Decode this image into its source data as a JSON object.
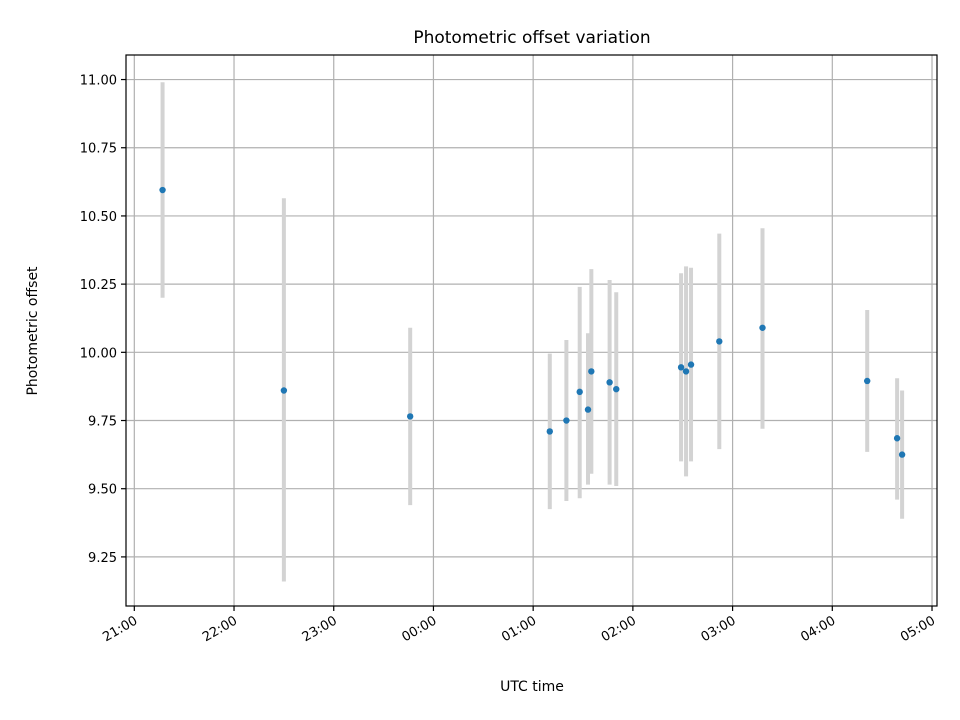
{
  "chart_data": {
    "type": "scatter",
    "title": "Photometric offset variation",
    "xlabel": "UTC time",
    "ylabel": "Photometric offset",
    "x_axis_type": "time",
    "xlim": [
      "20:55",
      "05:03"
    ],
    "ylim": [
      9.07,
      11.09
    ],
    "x_ticks": [
      "21:00",
      "22:00",
      "23:00",
      "00:00",
      "01:00",
      "02:00",
      "03:00",
      "04:00",
      "05:00"
    ],
    "y_ticks": [
      "9.25",
      "9.50",
      "9.75",
      "10.00",
      "10.25",
      "10.50",
      "10.75",
      "11.00"
    ],
    "grid": true,
    "marker_color": "#1f77b4",
    "errorbar_color": "#d3d3d3",
    "points": [
      {
        "time": "21:17",
        "y": 10.595,
        "ylow": 10.2,
        "yhigh": 10.99
      },
      {
        "time": "22:30",
        "y": 9.86,
        "ylow": 9.16,
        "yhigh": 10.565
      },
      {
        "time": "23:46",
        "y": 9.765,
        "ylow": 9.44,
        "yhigh": 10.09
      },
      {
        "time": "01:10",
        "y": 9.71,
        "ylow": 9.425,
        "yhigh": 9.995
      },
      {
        "time": "01:20",
        "y": 9.75,
        "ylow": 9.455,
        "yhigh": 10.045
      },
      {
        "time": "01:28",
        "y": 9.855,
        "ylow": 9.465,
        "yhigh": 10.24
      },
      {
        "time": "01:33",
        "y": 9.79,
        "ylow": 9.515,
        "yhigh": 10.07
      },
      {
        "time": "01:35",
        "y": 9.93,
        "ylow": 9.555,
        "yhigh": 10.305
      },
      {
        "time": "01:46",
        "y": 9.89,
        "ylow": 9.515,
        "yhigh": 10.265
      },
      {
        "time": "01:50",
        "y": 9.865,
        "ylow": 9.51,
        "yhigh": 10.22
      },
      {
        "time": "02:29",
        "y": 9.945,
        "ylow": 9.6,
        "yhigh": 10.29
      },
      {
        "time": "02:32",
        "y": 9.93,
        "ylow": 9.545,
        "yhigh": 10.315
      },
      {
        "time": "02:35",
        "y": 9.955,
        "ylow": 9.6,
        "yhigh": 10.31
      },
      {
        "time": "02:52",
        "y": 10.04,
        "ylow": 9.645,
        "yhigh": 10.435
      },
      {
        "time": "03:18",
        "y": 10.09,
        "ylow": 9.72,
        "yhigh": 10.455
      },
      {
        "time": "04:21",
        "y": 9.895,
        "ylow": 9.635,
        "yhigh": 10.155
      },
      {
        "time": "04:39",
        "y": 9.685,
        "ylow": 9.46,
        "yhigh": 9.905
      },
      {
        "time": "04:42",
        "y": 9.625,
        "ylow": 9.39,
        "yhigh": 9.86
      }
    ]
  }
}
